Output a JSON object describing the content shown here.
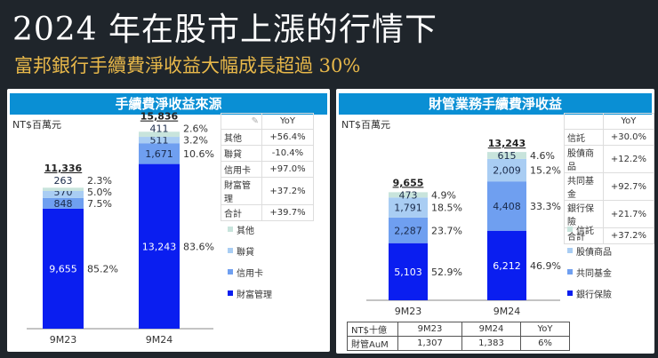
{
  "title": "2024 年在股市上漲的行情下",
  "subtitle": "富邦銀行手續費淨收益大幅成長超過 30%",
  "chart_data": [
    {
      "type": "bar",
      "stacked": true,
      "title": "手續費淨收益來源",
      "unit": "NT$百萬元",
      "categories": [
        "9M23",
        "9M24"
      ],
      "totals": [
        "11,336",
        "15,836"
      ],
      "series": [
        {
          "name": "財富管理",
          "color": "#0a1ef0",
          "values": [
            9655,
            13243
          ],
          "labels": [
            "9,655",
            "13,243"
          ],
          "pct": [
            "85.2%",
            "83.6%"
          ]
        },
        {
          "name": "信用卡",
          "color": "#6f9ff0",
          "values": [
            848,
            1671
          ],
          "labels": [
            "848",
            "1,671"
          ],
          "pct": [
            "7.5%",
            "10.6%"
          ]
        },
        {
          "name": "聯貸",
          "color": "#a9cdf3",
          "values": [
            570,
            511
          ],
          "labels": [
            "570",
            "511"
          ],
          "pct": [
            "5.0%",
            "3.2%"
          ]
        },
        {
          "name": "其他",
          "color": "#c8e4dc",
          "values": [
            263,
            411
          ],
          "labels": [
            "263",
            "411"
          ],
          "pct": [
            "2.3%",
            "2.6%"
          ]
        }
      ],
      "yoy_header": "YoY",
      "yoy": [
        {
          "k": "其他",
          "v": "+56.4%"
        },
        {
          "k": "聯貸",
          "v": "-10.4%"
        },
        {
          "k": "信用卡",
          "v": "+97.0%"
        },
        {
          "k": "財富管理",
          "v": "+37.2%"
        },
        {
          "k": "合計",
          "v": "+39.7%"
        }
      ]
    },
    {
      "type": "bar",
      "stacked": true,
      "title": "財管業務手續費淨收益",
      "unit": "NT$百萬元",
      "categories": [
        "9M23",
        "9M24"
      ],
      "totals": [
        "9,655",
        "13,243"
      ],
      "series": [
        {
          "name": "銀行保險",
          "color": "#0a1ef0",
          "values": [
            5103,
            6212
          ],
          "labels": [
            "5,103",
            "6,212"
          ],
          "pct": [
            "52.9%",
            "46.9%"
          ]
        },
        {
          "name": "共同基金",
          "color": "#6f9ff0",
          "values": [
            2287,
            4408
          ],
          "labels": [
            "2,287",
            "4,408"
          ],
          "pct": [
            "23.7%",
            "33.3%"
          ]
        },
        {
          "name": "股債商品",
          "color": "#a9cdf3",
          "values": [
            1791,
            2009
          ],
          "labels": [
            "1,791",
            "2,009"
          ],
          "pct": [
            "18.5%",
            "15.2%"
          ]
        },
        {
          "name": "信託",
          "color": "#c8e4dc",
          "values": [
            473,
            615
          ],
          "labels": [
            "473",
            "615"
          ],
          "pct": [
            "4.9%",
            "4.6%"
          ]
        }
      ],
      "yoy_header": "YoY",
      "yoy": [
        {
          "k": "信託",
          "v": "+30.0%"
        },
        {
          "k": "股債商品",
          "v": "+12.2%"
        },
        {
          "k": "共同基金",
          "v": "+92.7%"
        },
        {
          "k": "銀行保險",
          "v": "+21.7%"
        },
        {
          "k": "合計",
          "v": "+37.2%"
        }
      ]
    }
  ],
  "aum_table": {
    "header": [
      "NT$十億",
      "9M23",
      "9M24",
      "YoY"
    ],
    "row": [
      "財管AuM",
      "1,307",
      "1,383",
      "6%"
    ]
  }
}
